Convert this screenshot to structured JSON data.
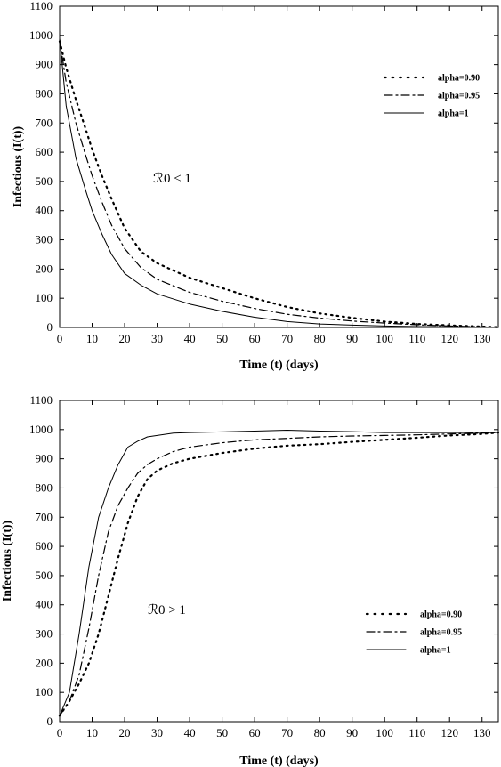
{
  "chart_data": [
    {
      "type": "line",
      "xlabel": "Time (t) (days)",
      "ylabel": "Infectious (I(t))",
      "annotation": "ℛ0 < 1",
      "xlim": [
        0,
        135
      ],
      "ylim": [
        0,
        1100
      ],
      "xticks": [
        0,
        10,
        20,
        30,
        40,
        50,
        60,
        70,
        80,
        90,
        100,
        110,
        120,
        130
      ],
      "yticks": [
        0,
        100,
        200,
        300,
        400,
        500,
        600,
        700,
        800,
        900,
        1000,
        1100
      ],
      "legend_position": "upper-right",
      "grid": false,
      "series": [
        {
          "name": "alpha=0.90",
          "style": "dotted",
          "x": [
            0,
            2,
            5,
            8,
            10,
            13,
            16,
            20,
            25,
            30,
            40,
            50,
            60,
            70,
            80,
            90,
            100,
            110,
            120,
            130,
            135
          ],
          "y": [
            980,
            890,
            780,
            680,
            610,
            520,
            440,
            340,
            260,
            220,
            170,
            135,
            100,
            70,
            48,
            33,
            20,
            12,
            7,
            3,
            1
          ]
        },
        {
          "name": "alpha=0.95",
          "style": "dashdot",
          "x": [
            0,
            2,
            5,
            8,
            10,
            13,
            16,
            20,
            25,
            30,
            40,
            50,
            60,
            70,
            80,
            90,
            100,
            110,
            120,
            130,
            135
          ],
          "y": [
            985,
            840,
            700,
            590,
            520,
            430,
            350,
            270,
            205,
            165,
            120,
            90,
            65,
            45,
            32,
            22,
            15,
            9,
            5,
            2,
            0
          ]
        },
        {
          "name": "alpha=1",
          "style": "solid",
          "x": [
            0,
            2,
            5,
            8,
            10,
            13,
            16,
            20,
            25,
            30,
            40,
            50,
            60,
            70,
            80,
            90,
            100,
            110,
            120,
            130,
            135
          ],
          "y": [
            990,
            760,
            580,
            470,
            400,
            320,
            250,
            185,
            145,
            115,
            80,
            55,
            35,
            20,
            12,
            8,
            5,
            3,
            2,
            1,
            0
          ]
        }
      ]
    },
    {
      "type": "line",
      "xlabel": "Time (t) (days)",
      "ylabel": "Infectious (I(t))",
      "annotation": "ℛ0 > 1",
      "xlim": [
        0,
        135
      ],
      "ylim": [
        0,
        1100
      ],
      "xticks": [
        0,
        10,
        20,
        30,
        40,
        50,
        60,
        70,
        80,
        90,
        100,
        110,
        120,
        130
      ],
      "yticks": [
        0,
        100,
        200,
        300,
        400,
        500,
        600,
        700,
        800,
        900,
        1000,
        1100
      ],
      "legend_position": "lower-right",
      "grid": false,
      "series": [
        {
          "name": "alpha=0.90",
          "style": "dotted",
          "x": [
            0,
            3,
            6,
            9,
            12,
            15,
            18,
            21,
            24,
            27,
            30,
            35,
            40,
            50,
            60,
            70,
            80,
            90,
            100,
            110,
            120,
            130,
            135
          ],
          "y": [
            20,
            70,
            130,
            200,
            300,
            430,
            560,
            680,
            770,
            830,
            860,
            885,
            900,
            920,
            935,
            945,
            950,
            958,
            965,
            972,
            980,
            985,
            990
          ]
        },
        {
          "name": "alpha=0.95",
          "style": "dashdot",
          "x": [
            0,
            3,
            6,
            9,
            12,
            15,
            18,
            21,
            24,
            27,
            30,
            35,
            40,
            50,
            60,
            70,
            80,
            90,
            100,
            110,
            120,
            130,
            135
          ],
          "y": [
            20,
            70,
            160,
            320,
            500,
            650,
            740,
            800,
            850,
            880,
            900,
            925,
            940,
            955,
            965,
            970,
            975,
            978,
            980,
            982,
            985,
            988,
            990
          ]
        },
        {
          "name": "alpha=1",
          "style": "solid",
          "x": [
            0,
            3,
            6,
            9,
            12,
            15,
            18,
            21,
            24,
            27,
            30,
            35,
            40,
            50,
            60,
            70,
            80,
            90,
            100,
            110,
            120,
            130,
            135
          ],
          "y": [
            20,
            100,
            300,
            530,
            700,
            800,
            880,
            940,
            960,
            975,
            980,
            988,
            990,
            992,
            995,
            998,
            995,
            993,
            990,
            990,
            990,
            990,
            990
          ]
        }
      ]
    }
  ]
}
